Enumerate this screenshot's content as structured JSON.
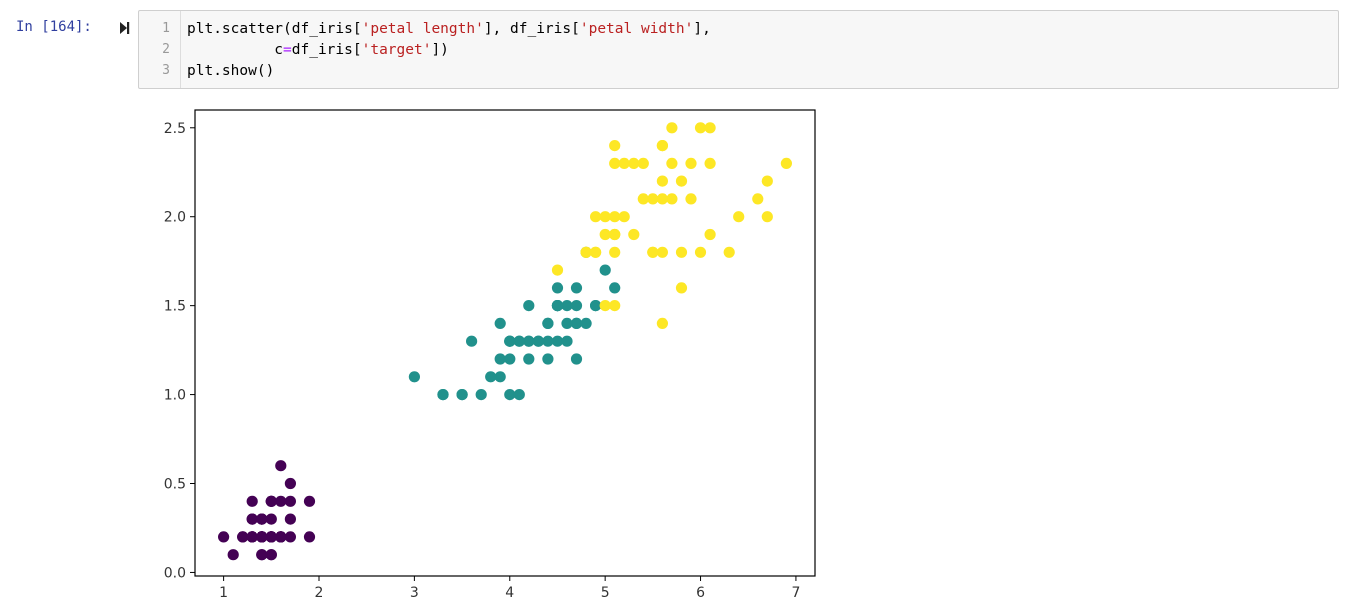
{
  "cell": {
    "prompt": "In [164]:",
    "line_numbers": [
      "1",
      "2",
      "3"
    ],
    "code_lines": [
      [
        {
          "t": "plt.scatter(df_iris["
        },
        {
          "t": "'petal length'",
          "c": "str"
        },
        {
          "t": "], df_iris["
        },
        {
          "t": "'petal width'",
          "c": "str"
        },
        {
          "t": "],"
        }
      ],
      [
        {
          "t": "          c"
        },
        {
          "t": "=",
          "c": "op"
        },
        {
          "t": "df_iris["
        },
        {
          "t": "'target'",
          "c": "str"
        },
        {
          "t": "])"
        }
      ],
      [
        {
          "t": "plt.show()"
        }
      ]
    ]
  },
  "chart_data": {
    "type": "scatter",
    "xlim": [
      0.7,
      7.2
    ],
    "ylim": [
      -0.02,
      2.6
    ],
    "xticks": [
      1,
      2,
      3,
      4,
      5,
      6,
      7
    ],
    "yticks": [
      0.0,
      0.5,
      1.0,
      1.5,
      2.0,
      2.5
    ],
    "ytick_labels": [
      "0.0",
      "0.5",
      "1.0",
      "1.5",
      "2.0",
      "2.5"
    ],
    "grid": false,
    "colors": [
      "#440154",
      "#21918c",
      "#fde725"
    ],
    "series": [
      {
        "values": [
          [
            1.4,
            0.2
          ],
          [
            1.4,
            0.2
          ],
          [
            1.3,
            0.2
          ],
          [
            1.5,
            0.2
          ],
          [
            1.4,
            0.2
          ],
          [
            1.7,
            0.4
          ],
          [
            1.4,
            0.3
          ],
          [
            1.5,
            0.2
          ],
          [
            1.4,
            0.2
          ],
          [
            1.5,
            0.1
          ],
          [
            1.5,
            0.2
          ],
          [
            1.6,
            0.2
          ],
          [
            1.4,
            0.1
          ],
          [
            1.1,
            0.1
          ],
          [
            1.2,
            0.2
          ],
          [
            1.5,
            0.4
          ],
          [
            1.3,
            0.4
          ],
          [
            1.4,
            0.3
          ],
          [
            1.7,
            0.3
          ],
          [
            1.5,
            0.3
          ],
          [
            1.7,
            0.2
          ],
          [
            1.5,
            0.4
          ],
          [
            1.0,
            0.2
          ],
          [
            1.7,
            0.5
          ],
          [
            1.9,
            0.2
          ],
          [
            1.6,
            0.2
          ],
          [
            1.6,
            0.4
          ],
          [
            1.5,
            0.2
          ],
          [
            1.4,
            0.2
          ],
          [
            1.6,
            0.2
          ],
          [
            1.6,
            0.2
          ],
          [
            1.5,
            0.4
          ],
          [
            1.5,
            0.1
          ],
          [
            1.4,
            0.2
          ],
          [
            1.5,
            0.2
          ],
          [
            1.2,
            0.2
          ],
          [
            1.3,
            0.2
          ],
          [
            1.4,
            0.1
          ],
          [
            1.3,
            0.2
          ],
          [
            1.5,
            0.2
          ],
          [
            1.3,
            0.3
          ],
          [
            1.3,
            0.3
          ],
          [
            1.3,
            0.2
          ],
          [
            1.6,
            0.6
          ],
          [
            1.9,
            0.4
          ],
          [
            1.4,
            0.3
          ],
          [
            1.6,
            0.2
          ],
          [
            1.4,
            0.2
          ],
          [
            1.5,
            0.2
          ],
          [
            1.4,
            0.2
          ]
        ]
      },
      {
        "values": [
          [
            4.7,
            1.4
          ],
          [
            4.5,
            1.5
          ],
          [
            4.9,
            1.5
          ],
          [
            4.0,
            1.3
          ],
          [
            4.6,
            1.5
          ],
          [
            4.5,
            1.3
          ],
          [
            4.7,
            1.6
          ],
          [
            3.3,
            1.0
          ],
          [
            4.6,
            1.3
          ],
          [
            3.9,
            1.4
          ],
          [
            3.5,
            1.0
          ],
          [
            4.2,
            1.5
          ],
          [
            4.0,
            1.0
          ],
          [
            4.7,
            1.4
          ],
          [
            3.6,
            1.3
          ],
          [
            4.4,
            1.4
          ],
          [
            4.5,
            1.5
          ],
          [
            4.1,
            1.0
          ],
          [
            4.5,
            1.5
          ],
          [
            3.9,
            1.1
          ],
          [
            4.8,
            1.8
          ],
          [
            4.0,
            1.3
          ],
          [
            4.9,
            1.5
          ],
          [
            4.7,
            1.2
          ],
          [
            4.3,
            1.3
          ],
          [
            4.4,
            1.4
          ],
          [
            4.8,
            1.4
          ],
          [
            5.0,
            1.7
          ],
          [
            4.5,
            1.5
          ],
          [
            3.5,
            1.0
          ],
          [
            3.8,
            1.1
          ],
          [
            3.7,
            1.0
          ],
          [
            3.9,
            1.2
          ],
          [
            5.1,
            1.6
          ],
          [
            4.5,
            1.5
          ],
          [
            4.5,
            1.6
          ],
          [
            4.7,
            1.5
          ],
          [
            4.4,
            1.3
          ],
          [
            4.1,
            1.3
          ],
          [
            4.0,
            1.3
          ],
          [
            4.4,
            1.2
          ],
          [
            4.6,
            1.4
          ],
          [
            4.0,
            1.2
          ],
          [
            3.3,
            1.0
          ],
          [
            4.2,
            1.3
          ],
          [
            4.2,
            1.2
          ],
          [
            4.2,
            1.3
          ],
          [
            4.3,
            1.3
          ],
          [
            3.0,
            1.1
          ],
          [
            4.1,
            1.3
          ]
        ]
      },
      {
        "values": [
          [
            6.0,
            2.5
          ],
          [
            5.1,
            1.9
          ],
          [
            5.9,
            2.1
          ],
          [
            5.6,
            1.8
          ],
          [
            5.8,
            2.2
          ],
          [
            6.6,
            2.1
          ],
          [
            4.5,
            1.7
          ],
          [
            6.3,
            1.8
          ],
          [
            5.8,
            1.8
          ],
          [
            6.1,
            2.5
          ],
          [
            5.1,
            2.0
          ],
          [
            5.3,
            1.9
          ],
          [
            5.5,
            2.1
          ],
          [
            5.0,
            2.0
          ],
          [
            5.1,
            2.4
          ],
          [
            5.3,
            2.3
          ],
          [
            5.5,
            1.8
          ],
          [
            6.7,
            2.2
          ],
          [
            6.9,
            2.3
          ],
          [
            5.0,
            1.5
          ],
          [
            5.7,
            2.3
          ],
          [
            4.9,
            2.0
          ],
          [
            6.7,
            2.0
          ],
          [
            4.9,
            1.8
          ],
          [
            5.7,
            2.1
          ],
          [
            6.0,
            1.8
          ],
          [
            4.8,
            1.8
          ],
          [
            4.9,
            1.8
          ],
          [
            5.6,
            2.1
          ],
          [
            5.8,
            1.6
          ],
          [
            6.1,
            1.9
          ],
          [
            6.4,
            2.0
          ],
          [
            5.6,
            2.2
          ],
          [
            5.1,
            1.5
          ],
          [
            5.6,
            1.4
          ],
          [
            6.1,
            2.3
          ],
          [
            5.6,
            2.4
          ],
          [
            5.5,
            1.8
          ],
          [
            4.8,
            1.8
          ],
          [
            5.4,
            2.1
          ],
          [
            5.6,
            2.4
          ],
          [
            5.1,
            2.3
          ],
          [
            5.1,
            1.9
          ],
          [
            5.9,
            2.3
          ],
          [
            5.7,
            2.5
          ],
          [
            5.2,
            2.3
          ],
          [
            5.0,
            1.9
          ],
          [
            5.2,
            2.0
          ],
          [
            5.4,
            2.3
          ],
          [
            5.1,
            1.8
          ]
        ]
      }
    ]
  }
}
